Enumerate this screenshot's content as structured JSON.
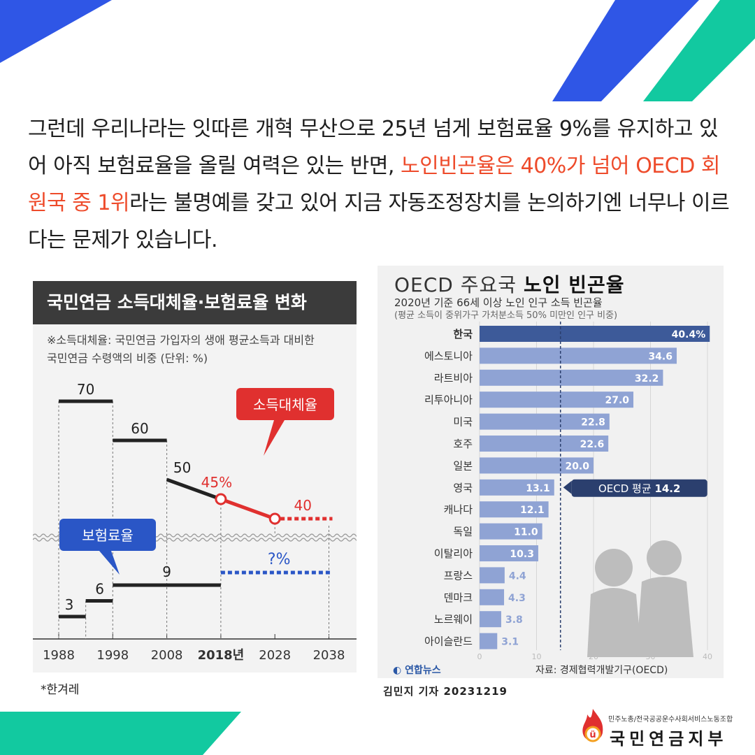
{
  "intro": {
    "part1": "그런데 우리나라는 잇따른 개혁 무산으로 25년 넘게 보험료율 9%를 유지하고 있어 아직 보험료율을 올릴 여력은 있는 반면, ",
    "highlight": "노인빈곤율은 40%가 넘어 OECD 회원국 중 1위",
    "part2": "라는 불명예를 갖고 있어 지금 자동조정장치를 논의하기엔 너무나 이르다는 문제가 있습니다."
  },
  "colors": {
    "accent_blue": "#2f56e6",
    "accent_teal": "#12c9a0",
    "highlight": "#ee4b2b",
    "bar_dark": "#3d5a99",
    "bar": "#8fa3d4",
    "pension_red": "#e0302f",
    "insurance_blue": "#2a56c6"
  },
  "left_chart": {
    "title": "국민연금 소득대체율·보험료율 변화",
    "note_line1": "※소득대체율: 국민연금 가입자의 생애 평균소득과 대비한",
    "note_line2": "국민연금 수령액의 비중 (단위: %)",
    "callout_replacement": "소득대체율",
    "callout_insurance": "보험료율",
    "source": "*한겨레"
  },
  "right_chart": {
    "title_light": "OECD 주요국 ",
    "title_bold": "노인 빈곤율",
    "subtitle": "2020년 기준 66세 이상 노인 인구 소득 빈곤율",
    "subtitle2": "(평균 소득이 중위가구 가처분소득 50% 미만인 인구 비중)",
    "brand": "연합뉴스",
    "source": "자료: 경제협력개발기구(OECD)",
    "reporter": "김민지 기자  20231219"
  },
  "chart_data": [
    {
      "type": "line",
      "title": "국민연금 소득대체율·보험료율 변화",
      "x_ticks": [
        "1988",
        "1998",
        "2008",
        "2018년",
        "2028",
        "2038"
      ],
      "series": [
        {
          "name": "소득대체율",
          "points": [
            {
              "x": 1988,
              "y": 70,
              "label": "70"
            },
            {
              "x": 1998,
              "y": 60,
              "label": "60"
            },
            {
              "x": 2008,
              "y": 50,
              "label": "50"
            },
            {
              "x": 2018,
              "y": 45,
              "label": "45%"
            },
            {
              "x": 2028,
              "y": 40,
              "label": "40"
            }
          ]
        },
        {
          "name": "보험료율",
          "points": [
            {
              "x": 1988,
              "y": 3,
              "label": "3"
            },
            {
              "x": 1993,
              "y": 6,
              "label": "6"
            },
            {
              "x": 1998,
              "y": 9,
              "label": "9"
            },
            {
              "x": 2018,
              "y": null,
              "label": "?%"
            }
          ]
        }
      ]
    },
    {
      "type": "bar",
      "title": "OECD 주요국 노인 빈곤율",
      "categories": [
        "한국",
        "에스토니아",
        "라트비아",
        "리투아니아",
        "미국",
        "호주",
        "일본",
        "영국",
        "캐나다",
        "독일",
        "이탈리아",
        "프랑스",
        "덴마크",
        "노르웨이",
        "아이슬란드"
      ],
      "values": [
        40.4,
        34.6,
        32.2,
        27.0,
        22.8,
        22.6,
        20.0,
        13.1,
        12.1,
        11.0,
        10.3,
        4.4,
        4.3,
        3.8,
        3.1
      ],
      "value_labels": [
        "40.4%",
        "34.6",
        "32.2",
        "27.0",
        "22.8",
        "22.6",
        "20.0",
        "13.1",
        "12.1",
        "11.0",
        "10.3",
        "4.4",
        "4.3",
        "3.8",
        "3.1"
      ],
      "x_ticks": [
        "0",
        "10",
        "20",
        "30",
        "40"
      ],
      "xlim": [
        0,
        40
      ],
      "reference": {
        "label_prefix": "OECD 평균",
        "value_label": "14.2",
        "value": 14.2
      }
    }
  ]
}
